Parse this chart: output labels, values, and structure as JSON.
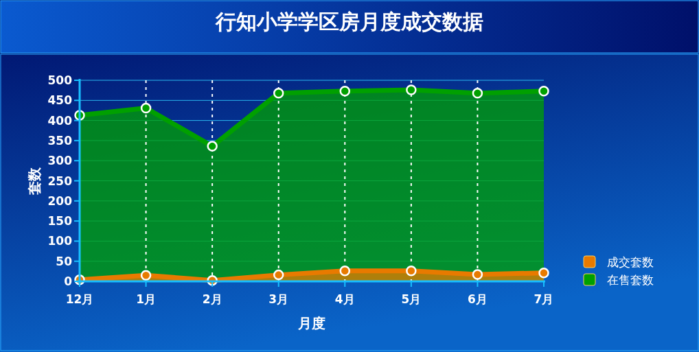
{
  "chart_data": {
    "type": "area",
    "title": "行知小学学区房月度成交数据",
    "xlabel": "月度",
    "ylabel": "套数",
    "categories": [
      "12月",
      "1月",
      "2月",
      "3月",
      "4月",
      "5月",
      "6月",
      "7月"
    ],
    "series": [
      {
        "name": "成交套数",
        "color": "#e87a00",
        "values": [
          4,
          15,
          2,
          16,
          26,
          26,
          17,
          21
        ]
      },
      {
        "name": "在售套数",
        "color": "#00a000",
        "values": [
          413,
          431,
          336,
          468,
          473,
          476,
          468,
          473
        ]
      }
    ],
    "ylim": [
      0,
      500
    ],
    "yticks": [
      0,
      50,
      100,
      150,
      200,
      250,
      300,
      350,
      400,
      450,
      500
    ],
    "grid": true,
    "legend": "right",
    "marker": "circle"
  }
}
